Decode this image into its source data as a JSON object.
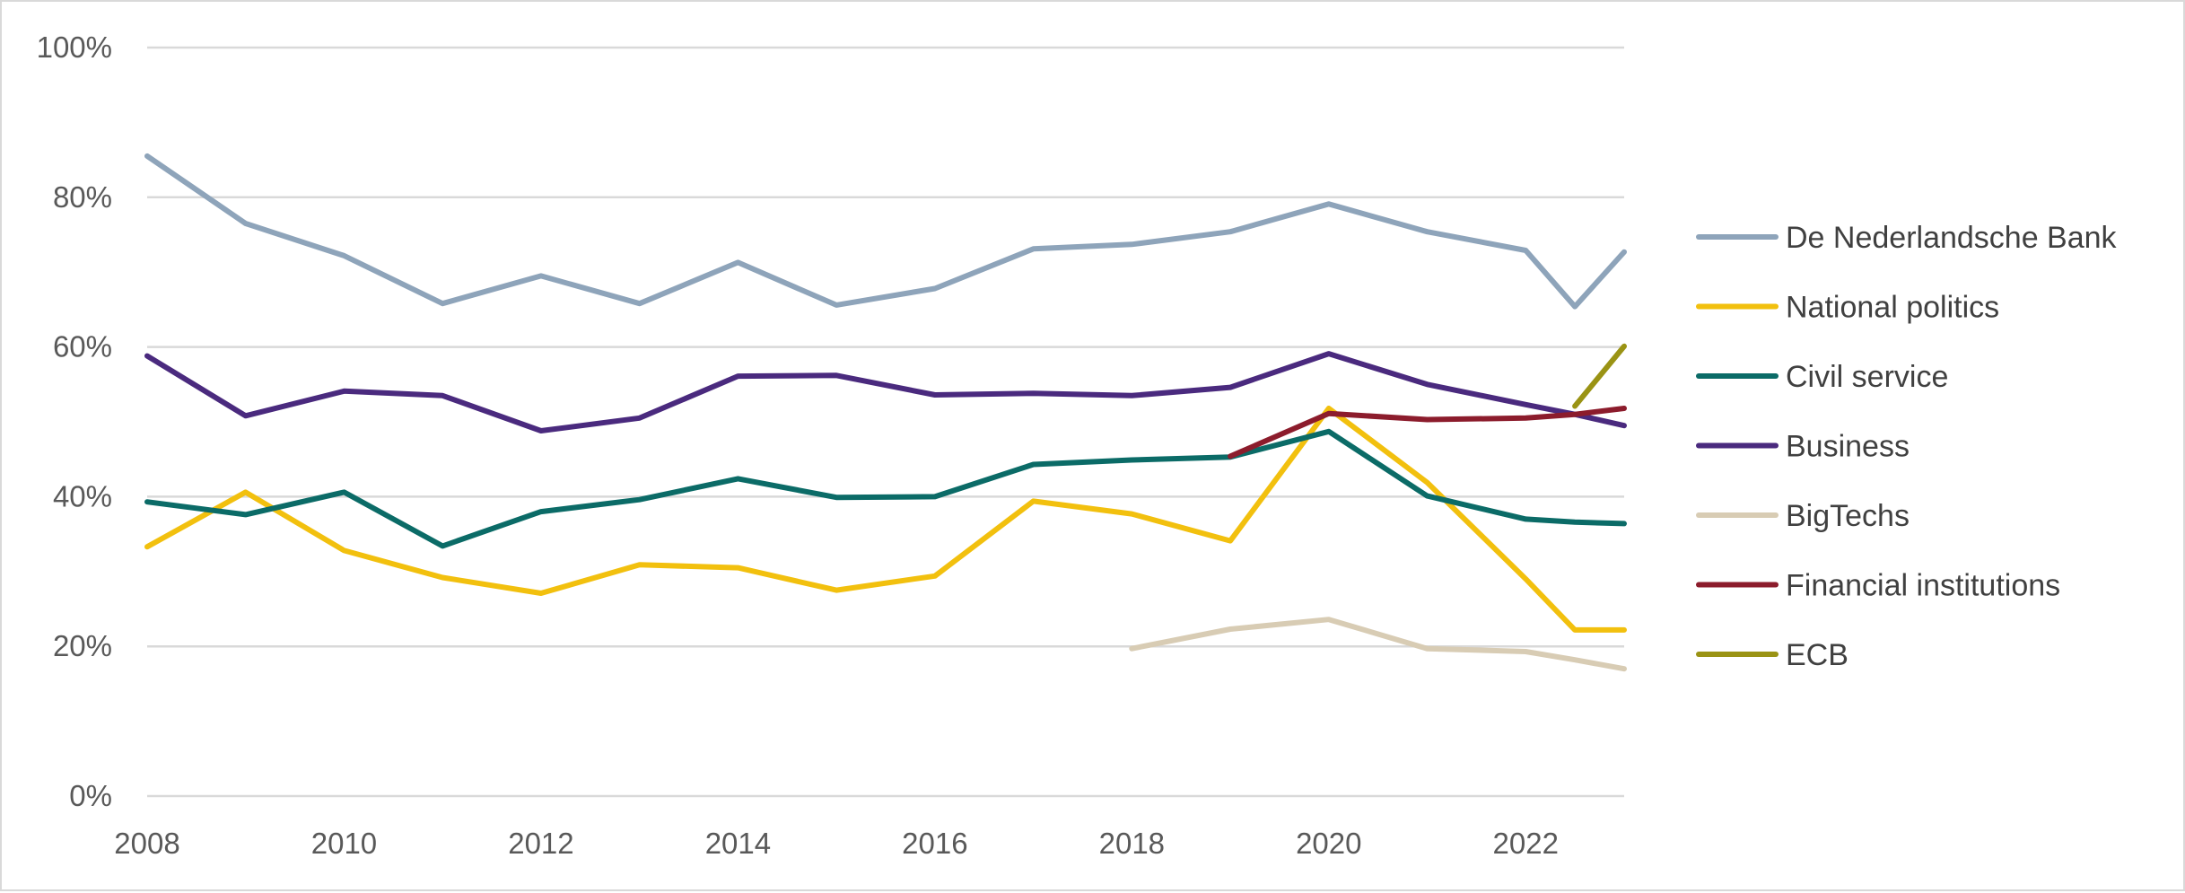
{
  "chart_data": {
    "type": "line",
    "x": [
      2008,
      2009,
      2010,
      2011,
      2012,
      2013,
      2014,
      2015,
      2016,
      2017,
      2018,
      2019,
      2020,
      2021,
      2022,
      2022.5,
      2023
    ],
    "xlim": [
      2008,
      2023
    ],
    "x_ticks": [
      2008,
      2010,
      2012,
      2014,
      2016,
      2018,
      2020,
      2022
    ],
    "x_tick_labels": [
      "2008",
      "2010",
      "2012",
      "2014",
      "2016",
      "2018",
      "2020",
      "2022"
    ],
    "ylim": [
      0,
      100
    ],
    "y_ticks": [
      0,
      20,
      40,
      60,
      80,
      100
    ],
    "y_tick_labels": [
      "0%",
      "20%",
      "40%",
      "60%",
      "80%",
      "100%"
    ],
    "grid": "horizontal",
    "legend_position": "right",
    "series": [
      {
        "name": "De Nederlandsche Bank",
        "color": "#8ea4ba",
        "values": [
          85.5,
          76.5,
          72.2,
          65.8,
          69.5,
          65.8,
          71.3,
          65.6,
          67.8,
          73.1,
          73.7,
          75.4,
          79.1,
          75.4,
          72.9,
          65.4,
          72.7
        ]
      },
      {
        "name": "National politics",
        "color": "#f2c00e",
        "values": [
          33.3,
          40.6,
          32.8,
          29.2,
          27.1,
          30.9,
          30.5,
          27.5,
          29.4,
          39.4,
          37.7,
          34.1,
          51.8,
          41.9,
          29.0,
          22.2,
          22.2
        ]
      },
      {
        "name": "Civil service",
        "color": "#0b6b67",
        "values": [
          39.3,
          37.6,
          40.6,
          33.4,
          38.0,
          39.6,
          42.4,
          39.9,
          40.0,
          44.3,
          44.9,
          45.3,
          48.7,
          40.1,
          37.0,
          36.6,
          36.4
        ]
      },
      {
        "name": "Business",
        "color": "#4a2a7e",
        "values": [
          58.8,
          50.8,
          54.1,
          53.5,
          48.8,
          50.5,
          56.1,
          56.2,
          53.6,
          53.8,
          53.5,
          54.6,
          59.1,
          55.0,
          52.3,
          51.0,
          49.5
        ]
      },
      {
        "name": "BigTechs",
        "color": "#d8ccb4",
        "values": [
          null,
          null,
          null,
          null,
          null,
          null,
          null,
          null,
          null,
          null,
          19.7,
          22.3,
          23.6,
          19.7,
          19.3,
          18.2,
          17.0
        ]
      },
      {
        "name": "Financial institutions",
        "color": "#8c1c2c",
        "values": [
          null,
          null,
          null,
          null,
          null,
          null,
          null,
          null,
          null,
          null,
          null,
          45.4,
          51.1,
          50.3,
          50.5,
          51.0,
          51.8
        ]
      },
      {
        "name": "ECB",
        "color": "#9a9314",
        "values": [
          null,
          null,
          null,
          null,
          null,
          null,
          null,
          null,
          null,
          null,
          null,
          null,
          null,
          null,
          null,
          52.1,
          60.1
        ]
      }
    ]
  }
}
